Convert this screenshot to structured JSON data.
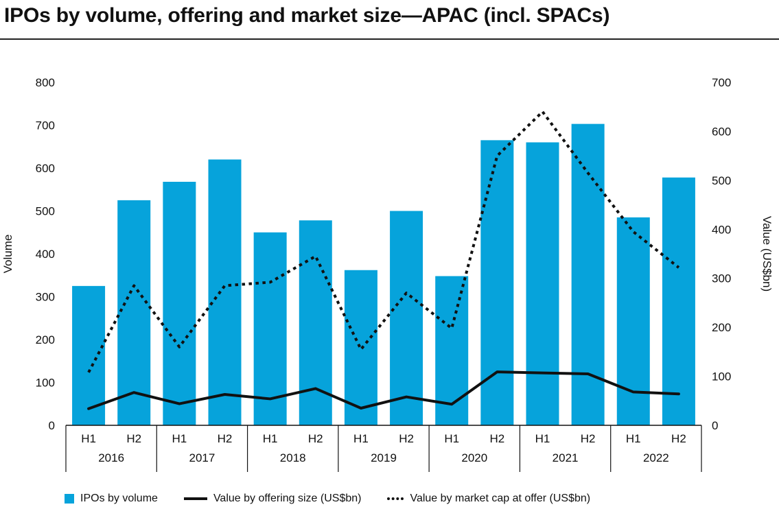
{
  "chart_data": {
    "type": "bar",
    "title": "IPOs by volume, offering and market size—APAC (incl. SPACs)",
    "ylabel": "Volume",
    "y2label": "Value (US$bn)",
    "ylim": [
      0,
      800
    ],
    "y2lim": [
      0,
      700
    ],
    "yticks": [
      "0",
      "100",
      "200",
      "300",
      "400",
      "500",
      "600",
      "700",
      "800"
    ],
    "y2ticks": [
      "0",
      "100",
      "200",
      "300",
      "400",
      "500",
      "600",
      "700"
    ],
    "categories": [
      {
        "half": "H1",
        "year": "2016"
      },
      {
        "half": "H2",
        "year": "2016"
      },
      {
        "half": "H1",
        "year": "2017"
      },
      {
        "half": "H2",
        "year": "2017"
      },
      {
        "half": "H1",
        "year": "2018"
      },
      {
        "half": "H2",
        "year": "2018"
      },
      {
        "half": "H1",
        "year": "2019"
      },
      {
        "half": "H2",
        "year": "2019"
      },
      {
        "half": "H1",
        "year": "2020"
      },
      {
        "half": "H2",
        "year": "2020"
      },
      {
        "half": "H1",
        "year": "2021"
      },
      {
        "half": "H2",
        "year": "2021"
      },
      {
        "half": "H1",
        "year": "2022"
      },
      {
        "half": "H2",
        "year": "2022"
      }
    ],
    "years": [
      "2016",
      "2017",
      "2018",
      "2019",
      "2020",
      "2021",
      "2022"
    ],
    "grid": false,
    "legend_position": "bottom",
    "series": [
      {
        "name": "IPOs by volume",
        "type": "bar",
        "axis": "left",
        "color": "#06a3db",
        "values": [
          325,
          525,
          568,
          620,
          450,
          478,
          362,
          500,
          348,
          665,
          660,
          703,
          485,
          578
        ]
      },
      {
        "name": "Value by offering size (US$bn)",
        "type": "line",
        "style": "solid",
        "axis": "right",
        "color": "#111111",
        "values": [
          34,
          67,
          44,
          63,
          54,
          75,
          35,
          58,
          43,
          109,
          107,
          105,
          68,
          64
        ]
      },
      {
        "name": "Value by market cap at offer (US$bn)",
        "type": "line",
        "style": "dotted",
        "axis": "right",
        "color": "#111111",
        "values": [
          108,
          285,
          160,
          285,
          292,
          345,
          155,
          270,
          198,
          550,
          640,
          515,
          395,
          322
        ]
      }
    ]
  }
}
